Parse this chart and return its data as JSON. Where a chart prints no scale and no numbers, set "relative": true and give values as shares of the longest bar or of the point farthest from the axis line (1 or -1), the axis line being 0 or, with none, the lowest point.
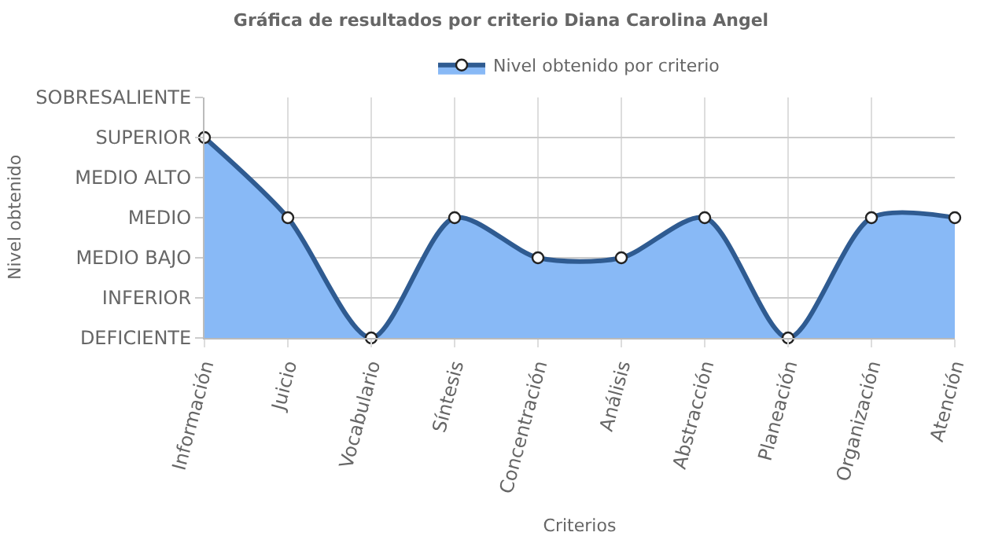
{
  "chart_data": {
    "type": "area",
    "title": "Gráfica de resultados por criterio Diana Carolina Angel",
    "xlabel": "Criterios",
    "annotations": [
      "Nivel obtenido"
    ],
    "categories": [
      "Información",
      "Juicio",
      "Vocabulario",
      "Síntesis",
      "Concentración",
      "Análisis",
      "Abstracción",
      "Planeación",
      "Organización",
      "Atención"
    ],
    "y_categories": [
      "SOBRESALIENTE",
      "SUPERIOR",
      "MEDIO ALTO",
      "MEDIO",
      "MEDIO BAJO",
      "INFERIOR",
      "DEFICIENTE"
    ],
    "relative": true,
    "series": [
      {
        "name": "Nivel obtenido por criterio",
        "color": "#2f5b91",
        "values": [
          1,
          0.6,
          0,
          0.6,
          0.4,
          0.4,
          0.6,
          0,
          0.6,
          0.6
        ]
      }
    ],
    "grid": true,
    "legend": "top",
    "marker": "circle",
    "line_style": "solid"
  }
}
